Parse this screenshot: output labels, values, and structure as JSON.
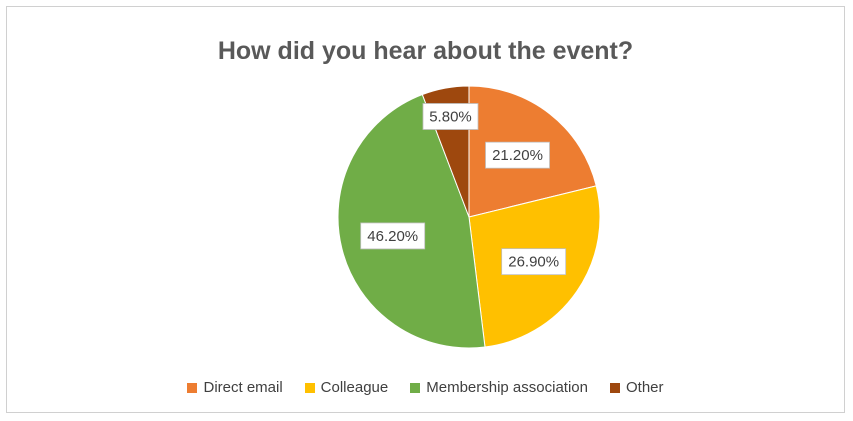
{
  "chart_data": {
    "type": "pie",
    "title": "How did you hear about the event?",
    "slices": [
      {
        "label": "Direct email",
        "value": 21.2,
        "display": "21.20%",
        "color": "#ED7D31"
      },
      {
        "label": "Colleague",
        "value": 26.9,
        "display": "26.90%",
        "color": "#FFC000"
      },
      {
        "label": "Membership association",
        "value": 46.2,
        "display": "46.20%",
        "color": "#70AD47"
      },
      {
        "label": "Other",
        "value": 5.8,
        "display": "5.80%",
        "color": "#9E480E"
      }
    ],
    "legend_position": "bottom",
    "start_angle_deg": 0,
    "direction": "clockwise"
  }
}
